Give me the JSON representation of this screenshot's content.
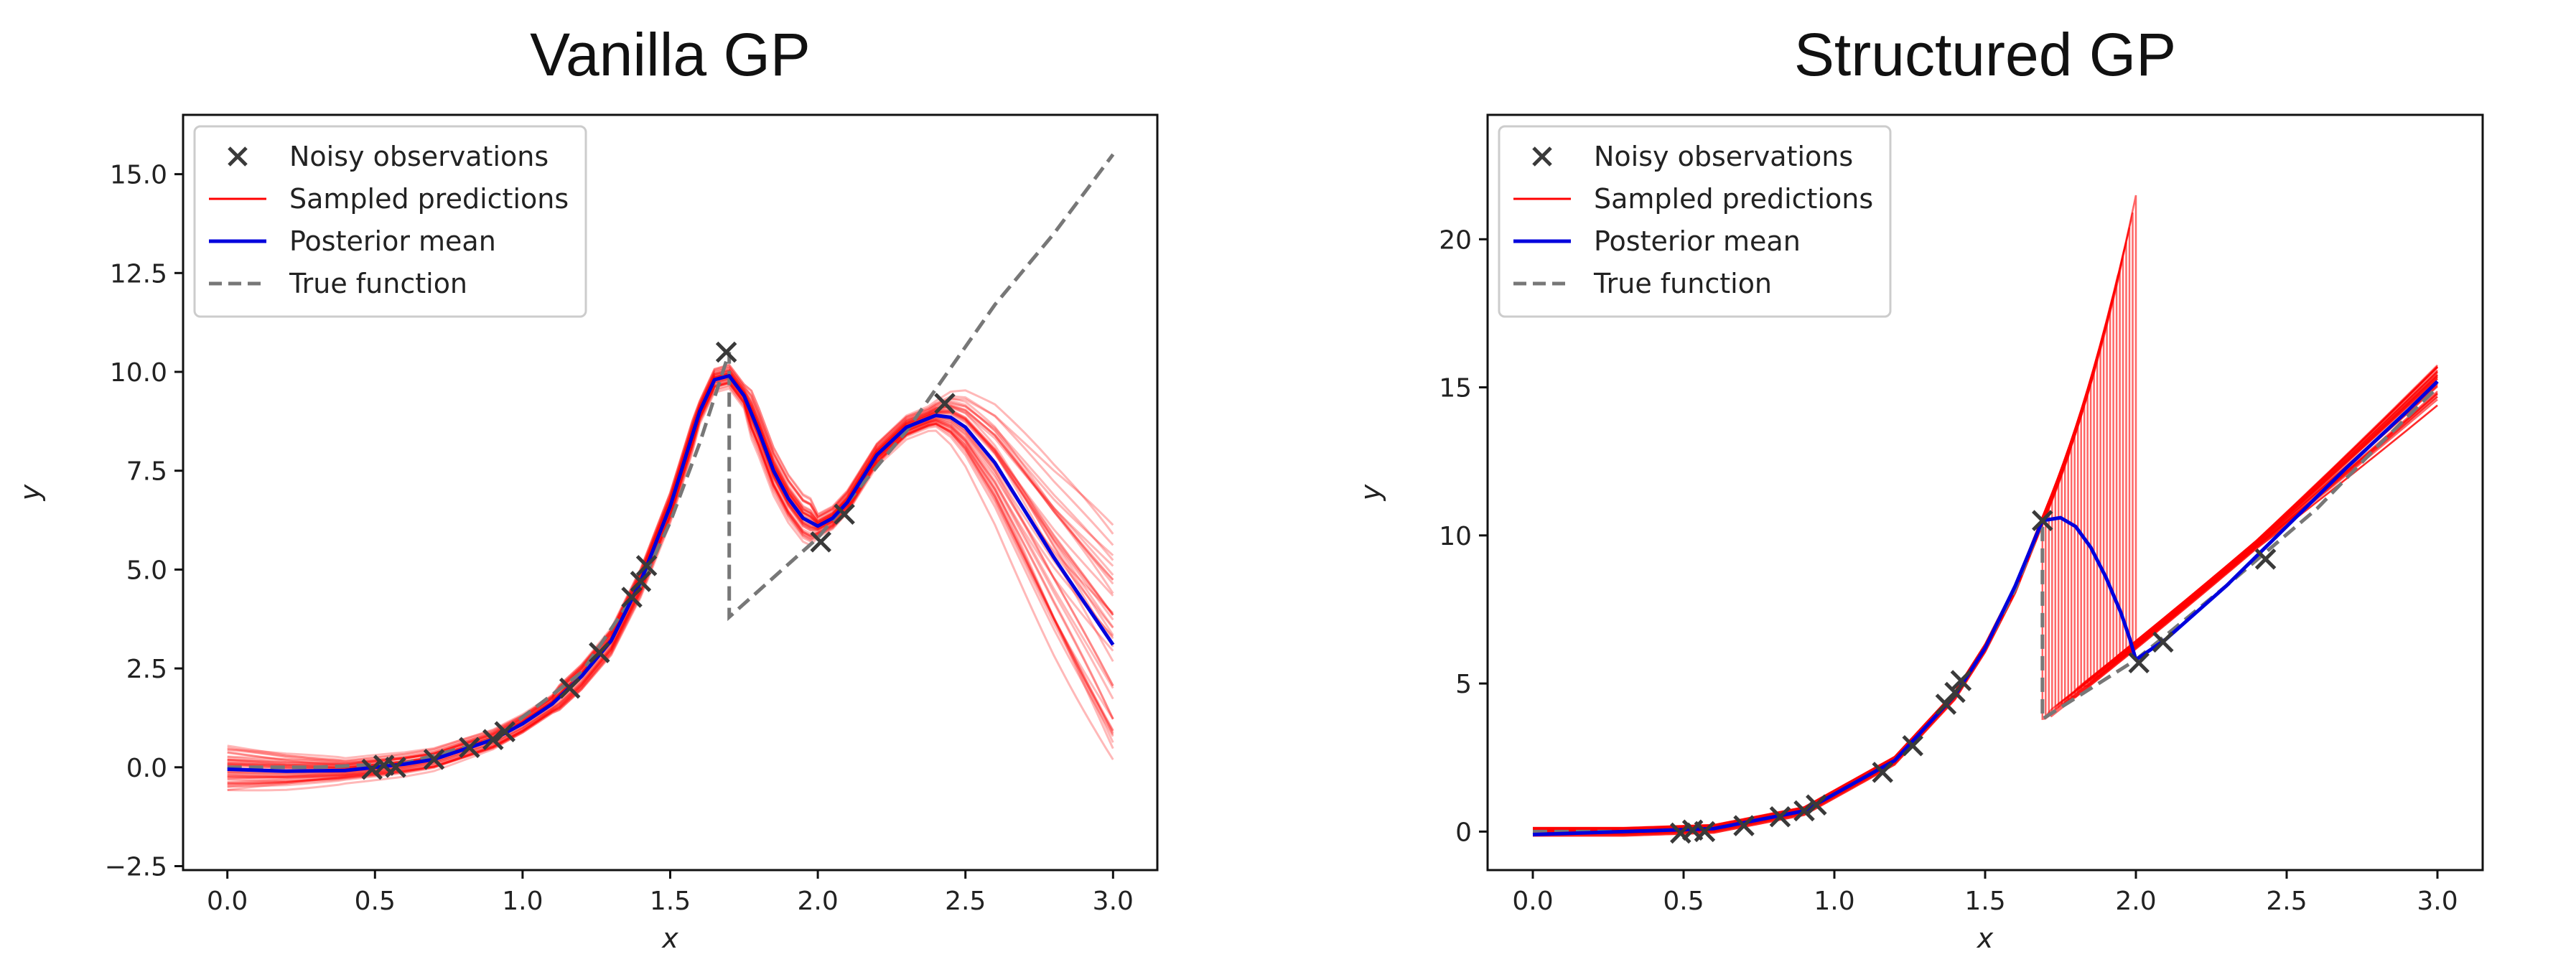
{
  "colors": {
    "observation": "#3a3a3a",
    "sample": "#ff0000",
    "mean": "#0000dd",
    "true_function": "#777777"
  },
  "chart_data": [
    {
      "type": "line",
      "title": "Vanilla GP",
      "xlabel": "x",
      "ylabel": "y",
      "xlim": [
        -0.15,
        3.15
      ],
      "ylim": [
        -2.6,
        16.5
      ],
      "xticks": [
        0.0,
        0.5,
        1.0,
        1.5,
        2.0,
        2.5,
        3.0
      ],
      "xtick_labels": [
        "0.0",
        "0.5",
        "1.0",
        "1.5",
        "2.0",
        "2.5",
        "3.0"
      ],
      "yticks": [
        -2.5,
        0.0,
        2.5,
        5.0,
        7.5,
        10.0,
        12.5,
        15.0
      ],
      "ytick_labels": [
        "−2.5",
        "0.0",
        "2.5",
        "5.0",
        "7.5",
        "10.0",
        "12.5",
        "15.0"
      ],
      "legend": {
        "position": "upper-left",
        "entries": [
          "Noisy observations",
          "Sampled predictions",
          "Posterior mean",
          "True function"
        ]
      },
      "observations": {
        "x": [
          0.49,
          0.53,
          0.57,
          0.7,
          0.82,
          0.9,
          0.94,
          1.16,
          1.26,
          1.37,
          1.4,
          1.42,
          1.69,
          2.01,
          2.09,
          2.43
        ],
        "y": [
          -0.05,
          0.05,
          0.0,
          0.2,
          0.5,
          0.7,
          0.9,
          2.0,
          2.9,
          4.3,
          4.7,
          5.1,
          10.5,
          5.7,
          6.4,
          9.2
        ]
      },
      "posterior_mean": {
        "x": [
          0.0,
          0.2,
          0.4,
          0.5,
          0.6,
          0.7,
          0.8,
          0.9,
          1.0,
          1.1,
          1.2,
          1.3,
          1.4,
          1.5,
          1.55,
          1.6,
          1.65,
          1.7,
          1.75,
          1.8,
          1.85,
          1.9,
          1.95,
          2.0,
          2.05,
          2.1,
          2.15,
          2.2,
          2.3,
          2.4,
          2.45,
          2.5,
          2.6,
          2.7,
          2.8,
          2.9,
          3.0
        ],
        "y": [
          -0.05,
          -0.1,
          -0.08,
          0.0,
          0.08,
          0.2,
          0.45,
          0.7,
          1.1,
          1.6,
          2.3,
          3.2,
          4.7,
          6.6,
          7.8,
          9.0,
          9.8,
          9.9,
          9.4,
          8.5,
          7.5,
          6.8,
          6.3,
          6.1,
          6.3,
          6.7,
          7.3,
          7.9,
          8.6,
          8.9,
          8.85,
          8.6,
          7.7,
          6.5,
          5.3,
          4.2,
          3.1
        ]
      },
      "true_function": {
        "x": [
          0.0,
          0.3,
          0.6,
          0.9,
          1.2,
          1.4,
          1.5,
          1.6,
          1.7,
          1.7,
          2.0,
          2.3,
          2.6,
          2.8,
          3.0
        ],
        "y": [
          0.0,
          0.0,
          0.1,
          0.7,
          2.4,
          4.6,
          6.2,
          8.2,
          10.5,
          3.8,
          5.8,
          8.5,
          11.7,
          13.5,
          15.5
        ]
      },
      "samples": {
        "description": "bundle of posterior samples around mean",
        "count": 40
      }
    },
    {
      "type": "line",
      "title": "Structured GP",
      "xlabel": "x",
      "ylabel": "y",
      "xlim": [
        -0.15,
        3.15
      ],
      "ylim": [
        -1.3,
        24.2
      ],
      "xticks": [
        0.0,
        0.5,
        1.0,
        1.5,
        2.0,
        2.5,
        3.0
      ],
      "xtick_labels": [
        "0.0",
        "0.5",
        "1.0",
        "1.5",
        "2.0",
        "2.5",
        "3.0"
      ],
      "yticks": [
        0,
        5,
        10,
        15,
        20
      ],
      "ytick_labels": [
        "0",
        "5",
        "10",
        "15",
        "20"
      ],
      "legend": {
        "position": "upper-left",
        "entries": [
          "Noisy observations",
          "Sampled predictions",
          "Posterior mean",
          "True function"
        ]
      },
      "observations": {
        "x": [
          0.49,
          0.53,
          0.57,
          0.7,
          0.82,
          0.9,
          0.94,
          1.16,
          1.26,
          1.37,
          1.4,
          1.42,
          1.69,
          2.01,
          2.09,
          2.43
        ],
        "y": [
          -0.05,
          0.05,
          0.0,
          0.2,
          0.5,
          0.7,
          0.9,
          2.0,
          2.9,
          4.3,
          4.7,
          5.1,
          10.5,
          5.7,
          6.4,
          9.2
        ]
      },
      "posterior_mean": {
        "x": [
          0.0,
          0.3,
          0.6,
          0.9,
          1.2,
          1.4,
          1.5,
          1.6,
          1.69,
          1.75,
          1.8,
          1.85,
          1.9,
          1.95,
          1.98,
          2.0,
          2.1,
          2.3,
          2.5,
          2.7,
          2.9,
          3.0
        ],
        "y": [
          -0.1,
          0.0,
          0.1,
          0.7,
          2.4,
          4.6,
          6.2,
          8.3,
          10.5,
          10.6,
          10.3,
          9.6,
          8.6,
          7.4,
          6.5,
          5.8,
          6.5,
          8.3,
          10.3,
          12.3,
          14.2,
          15.2
        ]
      },
      "true_function": {
        "x": [
          0.0,
          0.3,
          0.6,
          0.9,
          1.2,
          1.4,
          1.5,
          1.6,
          1.69,
          1.69,
          2.0,
          2.3,
          2.6,
          2.8,
          3.0
        ],
        "y": [
          0.0,
          0.0,
          0.1,
          0.7,
          2.4,
          4.6,
          6.2,
          8.2,
          10.5,
          3.8,
          5.8,
          8.3,
          10.9,
          13.0,
          15.0
        ]
      },
      "samples": {
        "description": "samples with variable change point between x=1.69 and x=2.0",
        "count": 30
      }
    }
  ]
}
